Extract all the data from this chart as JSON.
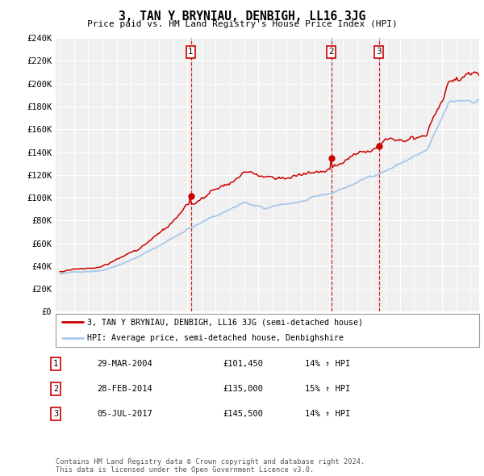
{
  "title": "3, TAN Y BRYNIAU, DENBIGH, LL16 3JG",
  "subtitle": "Price paid vs. HM Land Registry's House Price Index (HPI)",
  "ylim": [
    0,
    240000
  ],
  "yticks": [
    0,
    20000,
    40000,
    60000,
    80000,
    100000,
    120000,
    140000,
    160000,
    180000,
    200000,
    220000,
    240000
  ],
  "hpi_color": "#a8c8e8",
  "price_color": "#cc0000",
  "vline_color": "#cc0000",
  "sale_year_floats": [
    2004.24,
    2014.15,
    2017.51
  ],
  "sale_prices": [
    101450,
    135000,
    145500
  ],
  "sale_labels": [
    "1",
    "2",
    "3"
  ],
  "legend_line1": "3, TAN Y BRYNIAU, DENBIGH, LL16 3JG (semi-detached house)",
  "legend_line2": "HPI: Average price, semi-detached house, Denbighshire",
  "table_rows": [
    [
      "1",
      "29-MAR-2004",
      "£101,450",
      "14% ↑ HPI"
    ],
    [
      "2",
      "28-FEB-2014",
      "£135,000",
      "15% ↑ HPI"
    ],
    [
      "3",
      "05-JUL-2017",
      "£145,500",
      "14% ↑ HPI"
    ]
  ],
  "footnote": "Contains HM Land Registry data © Crown copyright and database right 2024.\nThis data is licensed under the Open Government Licence v3.0.",
  "bg_color": "#ffffff",
  "chart_bg": "#f0f0f0",
  "grid_color": "#ffffff"
}
